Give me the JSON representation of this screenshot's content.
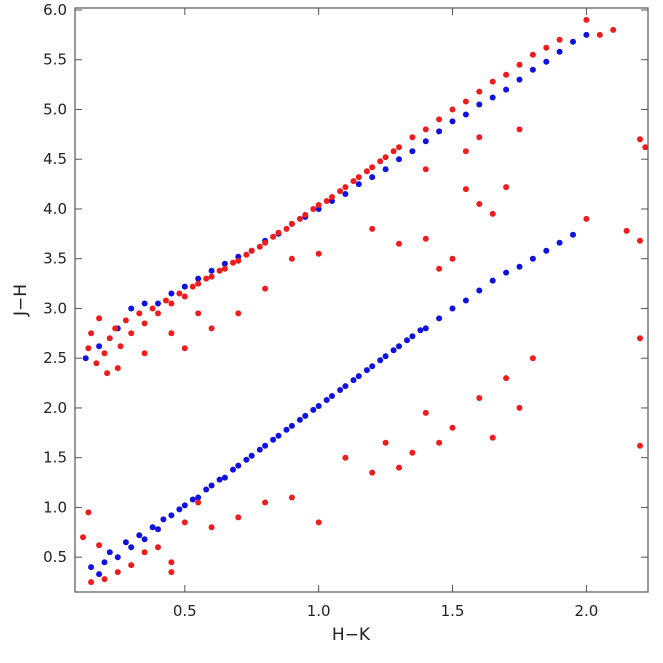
{
  "chart_data": {
    "type": "scatter",
    "title": "",
    "xlabel": "H−K",
    "ylabel": "J−H",
    "xlim": [
      0.09,
      2.23
    ],
    "ylim": [
      0.15,
      6.02
    ],
    "x_ticks": [
      0.5,
      1.0,
      1.5,
      2.0
    ],
    "x_tick_labels": [
      "0.5",
      "1.0",
      "1.5",
      "2.0"
    ],
    "y_ticks": [
      0.5,
      1.0,
      1.5,
      2.0,
      2.5,
      3.0,
      3.5,
      4.0,
      4.5,
      5.0,
      5.5,
      6.0
    ],
    "y_tick_labels": [
      "0.5",
      "1.0",
      "1.5",
      "2.0",
      "2.5",
      "3.0",
      "3.5",
      "4.0",
      "4.5",
      "5.0",
      "5.5",
      "6.0"
    ],
    "grid": false,
    "legend": "none",
    "series": [
      {
        "color": "#1010e0",
        "points": [
          [
            0.15,
            0.4
          ],
          [
            0.18,
            0.33
          ],
          [
            0.2,
            0.45
          ],
          [
            0.22,
            0.55
          ],
          [
            0.25,
            0.5
          ],
          [
            0.28,
            0.65
          ],
          [
            0.3,
            0.6
          ],
          [
            0.33,
            0.72
          ],
          [
            0.35,
            0.68
          ],
          [
            0.38,
            0.8
          ],
          [
            0.4,
            0.78
          ],
          [
            0.42,
            0.88
          ],
          [
            0.45,
            0.92
          ],
          [
            0.48,
            0.98
          ],
          [
            0.5,
            1.02
          ],
          [
            0.53,
            1.08
          ],
          [
            0.55,
            1.1
          ],
          [
            0.58,
            1.18
          ],
          [
            0.6,
            1.22
          ],
          [
            0.63,
            1.28
          ],
          [
            0.65,
            1.3
          ],
          [
            0.68,
            1.38
          ],
          [
            0.7,
            1.42
          ],
          [
            0.73,
            1.48
          ],
          [
            0.75,
            1.52
          ],
          [
            0.78,
            1.58
          ],
          [
            0.8,
            1.62
          ],
          [
            0.83,
            1.68
          ],
          [
            0.85,
            1.72
          ],
          [
            0.88,
            1.78
          ],
          [
            0.9,
            1.82
          ],
          [
            0.93,
            1.88
          ],
          [
            0.95,
            1.92
          ],
          [
            0.98,
            1.98
          ],
          [
            1.0,
            2.02
          ],
          [
            1.03,
            2.08
          ],
          [
            1.05,
            2.12
          ],
          [
            1.08,
            2.18
          ],
          [
            1.1,
            2.22
          ],
          [
            1.13,
            2.28
          ],
          [
            1.15,
            2.32
          ],
          [
            1.18,
            2.38
          ],
          [
            1.2,
            2.42
          ],
          [
            1.23,
            2.48
          ],
          [
            1.25,
            2.52
          ],
          [
            1.28,
            2.58
          ],
          [
            1.3,
            2.62
          ],
          [
            1.33,
            2.68
          ],
          [
            1.35,
            2.72
          ],
          [
            1.38,
            2.78
          ],
          [
            1.4,
            2.8
          ],
          [
            1.45,
            2.9
          ],
          [
            1.5,
            3.0
          ],
          [
            1.55,
            3.08
          ],
          [
            1.6,
            3.18
          ],
          [
            1.65,
            3.28
          ],
          [
            1.7,
            3.36
          ],
          [
            1.75,
            3.42
          ],
          [
            1.8,
            3.5
          ],
          [
            1.85,
            3.58
          ],
          [
            1.9,
            3.66
          ],
          [
            1.95,
            3.74
          ],
          [
            0.13,
            2.5
          ],
          [
            0.18,
            2.62
          ],
          [
            0.25,
            2.8
          ],
          [
            0.3,
            3.0
          ],
          [
            0.35,
            3.05
          ],
          [
            0.4,
            3.05
          ],
          [
            0.45,
            3.15
          ],
          [
            0.5,
            3.22
          ],
          [
            0.55,
            3.3
          ],
          [
            0.6,
            3.38
          ],
          [
            0.65,
            3.45
          ],
          [
            0.7,
            3.52
          ],
          [
            0.75,
            3.58
          ],
          [
            0.8,
            3.68
          ],
          [
            0.85,
            3.75
          ],
          [
            0.9,
            3.85
          ],
          [
            0.95,
            3.92
          ],
          [
            1.0,
            4.0
          ],
          [
            1.05,
            4.08
          ],
          [
            1.1,
            4.15
          ],
          [
            1.15,
            4.25
          ],
          [
            1.2,
            4.32
          ],
          [
            1.25,
            4.4
          ],
          [
            1.3,
            4.5
          ],
          [
            1.35,
            4.58
          ],
          [
            1.4,
            4.68
          ],
          [
            1.45,
            4.78
          ],
          [
            1.5,
            4.88
          ],
          [
            1.55,
            4.95
          ],
          [
            1.6,
            5.05
          ],
          [
            1.65,
            5.12
          ],
          [
            1.7,
            5.2
          ],
          [
            1.75,
            5.3
          ],
          [
            1.8,
            5.4
          ],
          [
            1.85,
            5.48
          ],
          [
            1.9,
            5.58
          ],
          [
            1.95,
            5.68
          ],
          [
            2.0,
            5.75
          ]
        ]
      },
      {
        "color": "#ee1c1c",
        "points": [
          [
            0.14,
            2.6
          ],
          [
            0.15,
            2.75
          ],
          [
            0.17,
            2.45
          ],
          [
            0.18,
            2.9
          ],
          [
            0.2,
            2.55
          ],
          [
            0.22,
            2.7
          ],
          [
            0.24,
            2.8
          ],
          [
            0.26,
            2.62
          ],
          [
            0.28,
            2.88
          ],
          [
            0.3,
            2.75
          ],
          [
            0.33,
            2.95
          ],
          [
            0.35,
            2.85
          ],
          [
            0.38,
            3.0
          ],
          [
            0.4,
            2.95
          ],
          [
            0.43,
            3.08
          ],
          [
            0.45,
            3.05
          ],
          [
            0.48,
            3.15
          ],
          [
            0.5,
            3.12
          ],
          [
            0.53,
            3.22
          ],
          [
            0.55,
            3.25
          ],
          [
            0.58,
            3.3
          ],
          [
            0.6,
            3.32
          ],
          [
            0.63,
            3.38
          ],
          [
            0.65,
            3.4
          ],
          [
            0.68,
            3.46
          ],
          [
            0.7,
            3.48
          ],
          [
            0.73,
            3.54
          ],
          [
            0.75,
            3.58
          ],
          [
            0.78,
            3.62
          ],
          [
            0.8,
            3.66
          ],
          [
            0.83,
            3.72
          ],
          [
            0.85,
            3.76
          ],
          [
            0.88,
            3.8
          ],
          [
            0.9,
            3.85
          ],
          [
            0.93,
            3.9
          ],
          [
            0.95,
            3.94
          ],
          [
            0.98,
            4.0
          ],
          [
            1.0,
            4.04
          ],
          [
            1.03,
            4.08
          ],
          [
            1.05,
            4.12
          ],
          [
            1.08,
            4.18
          ],
          [
            1.1,
            4.22
          ],
          [
            1.13,
            4.28
          ],
          [
            1.15,
            4.32
          ],
          [
            1.18,
            4.38
          ],
          [
            1.2,
            4.42
          ],
          [
            1.23,
            4.48
          ],
          [
            1.25,
            4.52
          ],
          [
            1.28,
            4.58
          ],
          [
            1.3,
            4.62
          ],
          [
            1.35,
            4.72
          ],
          [
            1.4,
            4.8
          ],
          [
            1.45,
            4.9
          ],
          [
            1.5,
            5.0
          ],
          [
            1.55,
            5.08
          ],
          [
            1.6,
            5.18
          ],
          [
            1.65,
            5.28
          ],
          [
            1.7,
            5.35
          ],
          [
            1.75,
            5.45
          ],
          [
            1.8,
            5.55
          ],
          [
            1.85,
            5.62
          ],
          [
            1.9,
            5.7
          ],
          [
            2.0,
            5.9
          ],
          [
            2.05,
            5.75
          ],
          [
            2.1,
            5.8
          ],
          [
            2.2,
            4.7
          ],
          [
            2.22,
            4.62
          ],
          [
            2.0,
            3.9
          ],
          [
            2.15,
            3.78
          ],
          [
            2.2,
            3.68
          ],
          [
            2.2,
            2.7
          ],
          [
            2.2,
            1.62
          ],
          [
            1.75,
            4.8
          ],
          [
            1.6,
            4.72
          ],
          [
            1.55,
            4.58
          ],
          [
            1.4,
            4.4
          ],
          [
            1.55,
            4.2
          ],
          [
            1.6,
            4.05
          ],
          [
            1.7,
            4.22
          ],
          [
            1.65,
            3.95
          ],
          [
            1.2,
            3.8
          ],
          [
            1.3,
            3.65
          ],
          [
            1.4,
            3.7
          ],
          [
            1.5,
            3.5
          ],
          [
            1.45,
            3.4
          ],
          [
            1.0,
            3.55
          ],
          [
            0.9,
            3.5
          ],
          [
            0.8,
            3.2
          ],
          [
            0.7,
            2.95
          ],
          [
            0.6,
            2.8
          ],
          [
            0.5,
            2.6
          ],
          [
            0.45,
            2.75
          ],
          [
            0.55,
            2.95
          ],
          [
            0.35,
            2.55
          ],
          [
            0.25,
            2.4
          ],
          [
            0.21,
            2.35
          ],
          [
            1.8,
            2.5
          ],
          [
            1.7,
            2.3
          ],
          [
            1.6,
            2.1
          ],
          [
            1.75,
            2.0
          ],
          [
            1.65,
            1.7
          ],
          [
            1.5,
            1.8
          ],
          [
            1.45,
            1.65
          ],
          [
            1.4,
            1.95
          ],
          [
            1.35,
            1.55
          ],
          [
            1.3,
            1.4
          ],
          [
            1.25,
            1.65
          ],
          [
            1.2,
            1.35
          ],
          [
            1.1,
            1.5
          ],
          [
            1.0,
            0.85
          ],
          [
            0.9,
            1.1
          ],
          [
            0.8,
            1.05
          ],
          [
            0.7,
            0.9
          ],
          [
            0.6,
            0.8
          ],
          [
            0.55,
            1.05
          ],
          [
            0.5,
            0.85
          ],
          [
            0.45,
            0.45
          ],
          [
            0.4,
            0.6
          ],
          [
            0.35,
            0.55
          ],
          [
            0.3,
            0.42
          ],
          [
            0.25,
            0.35
          ],
          [
            0.2,
            0.28
          ],
          [
            0.15,
            0.25
          ],
          [
            0.12,
            0.7
          ],
          [
            0.14,
            0.95
          ],
          [
            0.18,
            0.62
          ],
          [
            0.45,
            0.35
          ]
        ]
      }
    ]
  }
}
